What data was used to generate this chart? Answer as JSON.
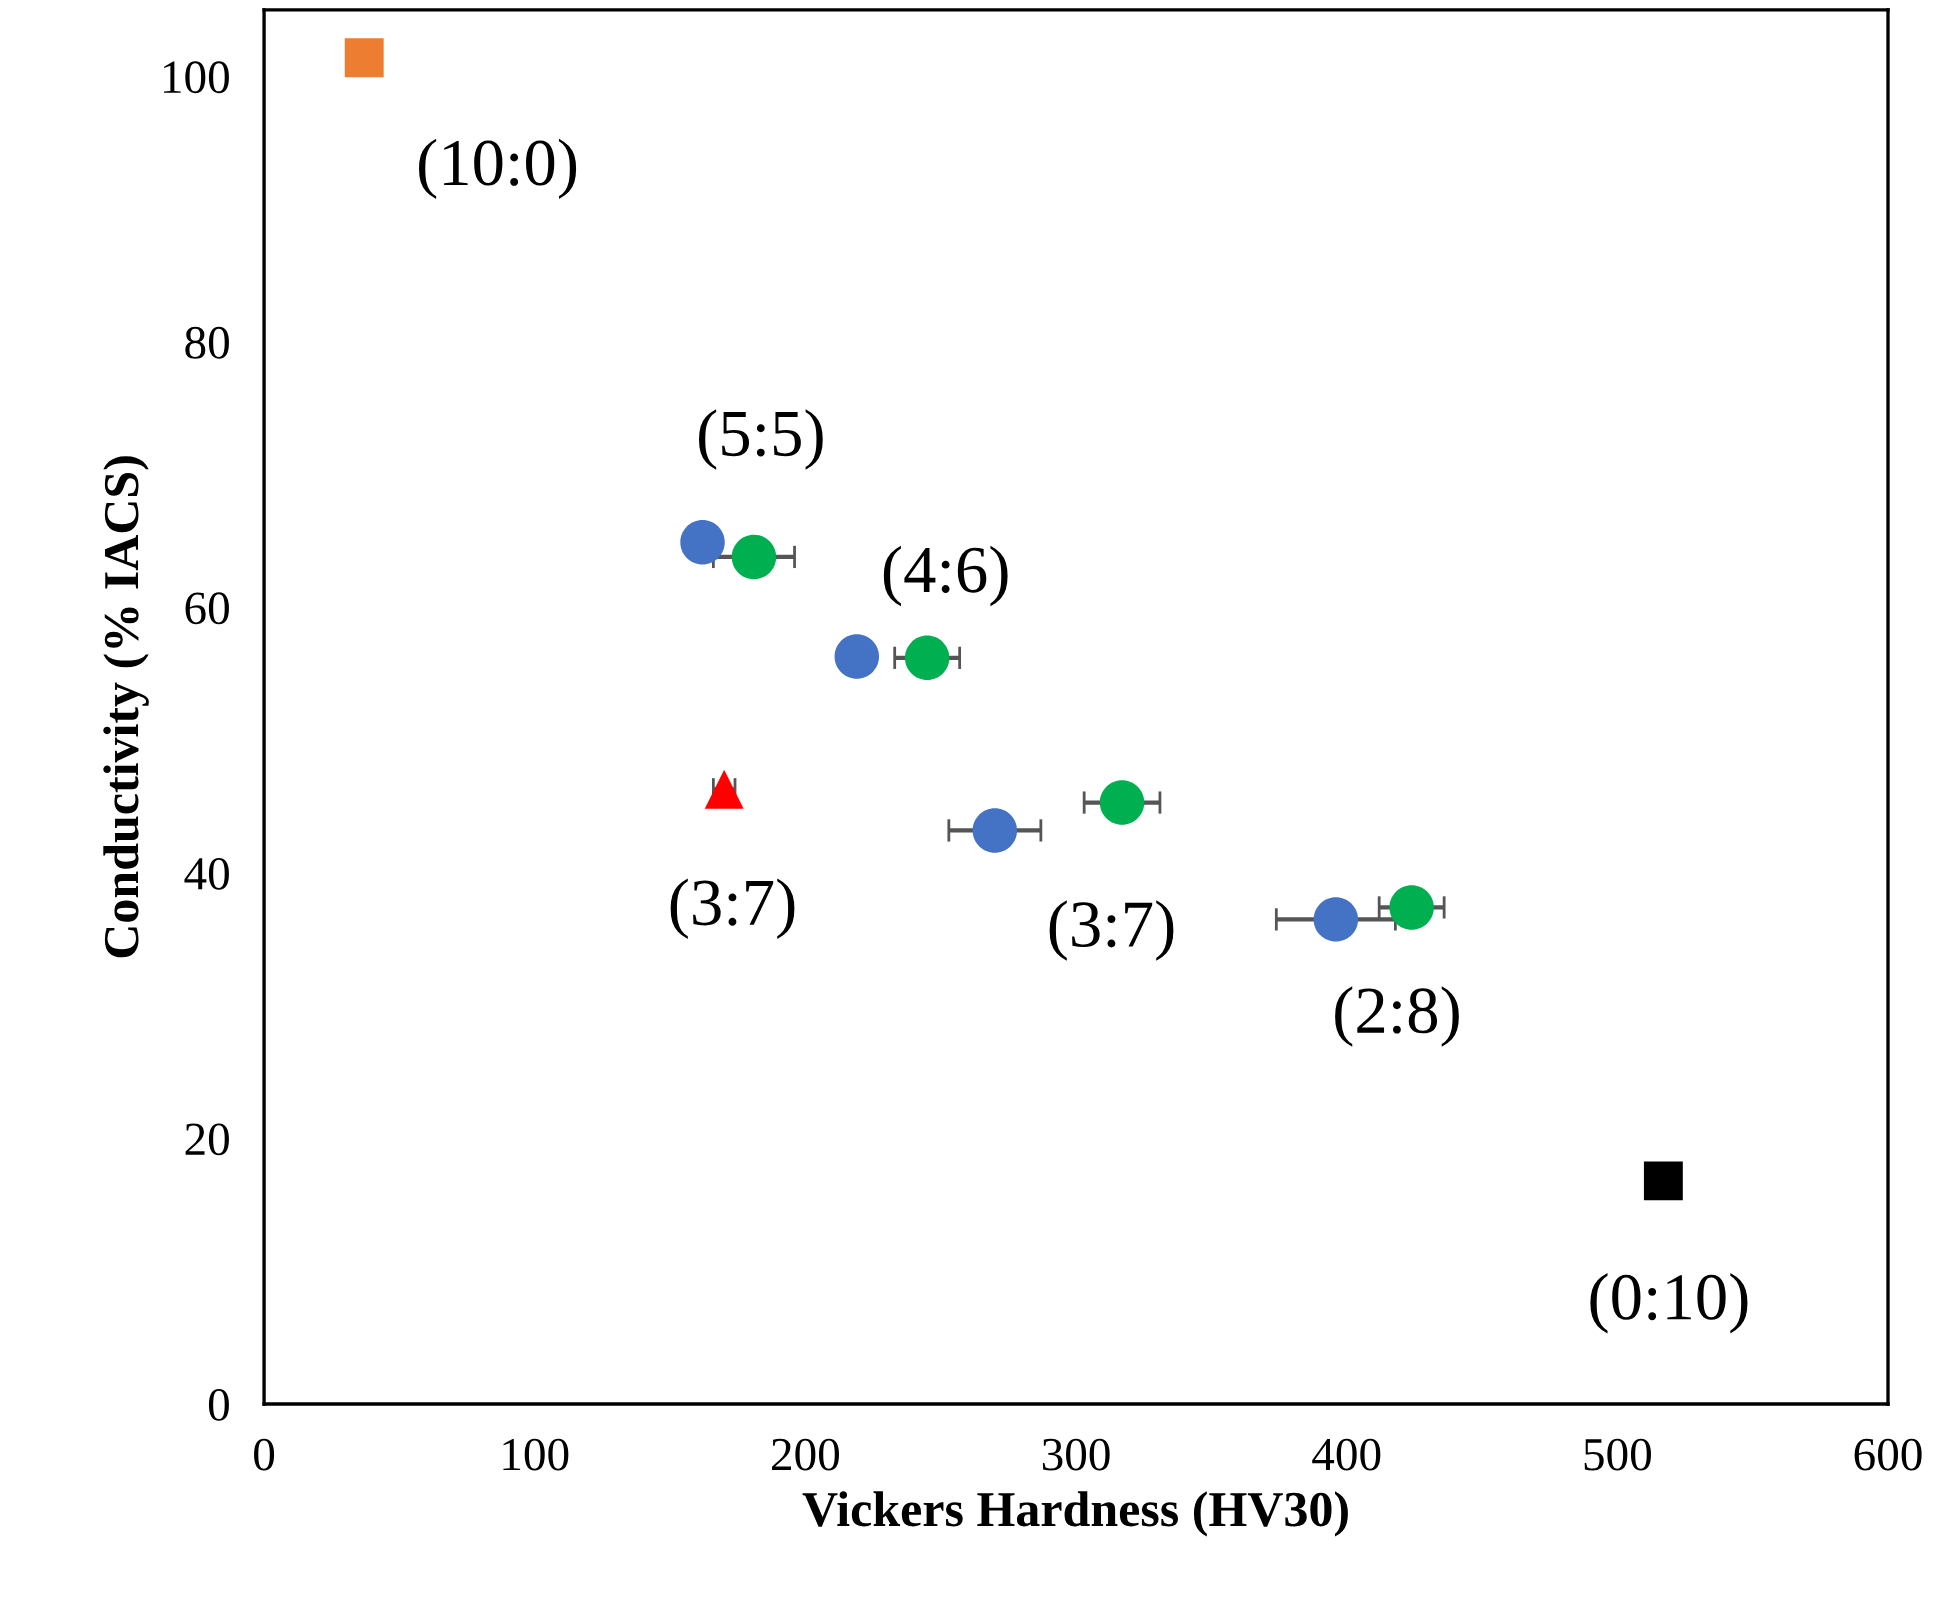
{
  "chart_data": {
    "type": "scatter",
    "xlabel": "Vickers Hardness (HV30)",
    "ylabel": "Conductivity (% IACS)",
    "xlim": [
      0,
      600
    ],
    "xticks": [
      0,
      100,
      200,
      300,
      400,
      500,
      600
    ],
    "ylim": [
      0,
      105
    ],
    "yticks": [
      0,
      20,
      40,
      60,
      80,
      100
    ],
    "grid": false,
    "legend": false,
    "series": [
      {
        "color": "#ed7d31",
        "marker": "square",
        "x": [
          37
        ],
        "values": [
          101.4
        ]
      },
      {
        "color": "#4472c4",
        "marker": "circle",
        "x": [
          162,
          219,
          270,
          396
        ],
        "values": [
          64.9,
          56.3,
          43.2,
          36.5
        ],
        "xerrors": [
          null,
          null,
          17,
          22
        ]
      },
      {
        "color": "#00b050",
        "marker": "circle",
        "x": [
          181,
          245,
          317,
          424
        ],
        "values": [
          63.8,
          56.2,
          45.3,
          37.4
        ],
        "xerrors": [
          15,
          12,
          14,
          12
        ]
      },
      {
        "color": "#ff0000",
        "marker": "triangle",
        "x": [
          170
        ],
        "values": [
          46.3
        ],
        "xerrors": [
          4
        ]
      },
      {
        "color": "#000000",
        "marker": "square",
        "x": [
          517
        ],
        "values": [
          16.8
        ]
      }
    ],
    "annotations": [
      {
        "text": "(10:0)",
        "x": 37,
        "y": 101.4
      },
      {
        "text": "(5:5)",
        "x": 162,
        "y": 64.9
      },
      {
        "text": "(4:6)",
        "x": 219,
        "y": 56.3
      },
      {
        "text": "(3:7)",
        "x": 170,
        "y": 46.3
      },
      {
        "text": "(3:7)",
        "x": 270,
        "y": 43.2
      },
      {
        "text": "(2:8)",
        "x": 396,
        "y": 36.5
      },
      {
        "text": "(0:10)",
        "x": 517,
        "y": 16.8
      }
    ]
  }
}
